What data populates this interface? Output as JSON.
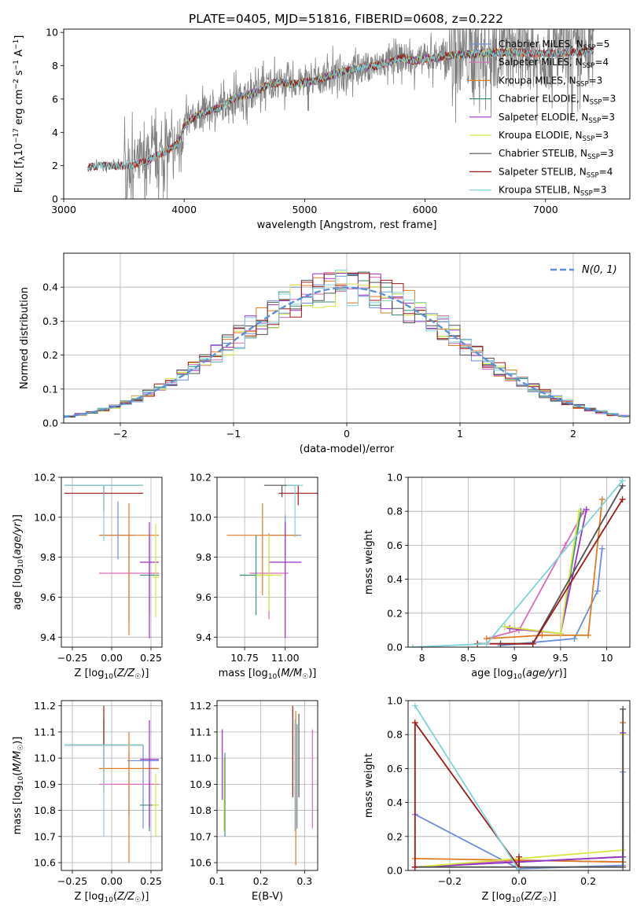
{
  "figure_title": "PLATE=0405, MJD=51816, FIBERID=0608, z=0.222",
  "palette": {
    "Chabrier MILES": "#6a8fd8",
    "Salpeter MILES": "#d96cb8",
    "Kroupa MILES": "#e07b20",
    "Chabrier ELODIE": "#3a8f7a",
    "Salpeter ELODIE": "#9b30c8",
    "Kroupa ELODIE": "#d8e640",
    "Chabrier STELIB": "#505050",
    "Salpeter STELIB": "#a01818",
    "Kroupa STELIB": "#7ed3d8",
    "data": "#808080",
    "gauss": "#5b8fd6"
  },
  "chart_data": [
    {
      "id": "spectrum",
      "type": "line",
      "xlabel": "wavelength [Angstrom, rest frame]",
      "ylabel": "Flux [f_λ10^-17 erg cm^-2 s^-1 A^-1]",
      "xlim": [
        3000,
        7700
      ],
      "ylim": [
        0,
        10.2
      ],
      "xticks": [
        3000,
        4000,
        5000,
        6000,
        7000
      ],
      "yticks": [
        0,
        2,
        4,
        6,
        8,
        10
      ],
      "grid": false,
      "legend_position": "top-right",
      "legend": [
        {
          "label": "Chabrier MILES",
          "nssp": "5",
          "color": "#6a8fd8"
        },
        {
          "label": "Salpeter MILES",
          "nssp": "4",
          "color": "#d96cb8"
        },
        {
          "label": "Kroupa MILES",
          "nssp": "3",
          "color": "#e07b20"
        },
        {
          "label": "Chabrier ELODIE",
          "nssp": "3",
          "color": "#3a8f7a"
        },
        {
          "label": "Salpeter ELODIE",
          "nssp": "3",
          "color": "#9b30c8"
        },
        {
          "label": "Kroupa ELODIE",
          "nssp": "3",
          "color": "#d8e640"
        },
        {
          "label": "Chabrier STELIB",
          "nssp": "3",
          "color": "#505050"
        },
        {
          "label": "Salpeter STELIB",
          "nssp": "4",
          "color": "#a01818"
        },
        {
          "label": "Kroupa STELIB",
          "nssp": "3",
          "color": "#7ed3d8"
        }
      ],
      "continuum": {
        "x": [
          3200,
          3300,
          3400,
          3500,
          3600,
          3700,
          3800,
          3900,
          3950,
          4000,
          4100,
          4200,
          4300,
          4400,
          4500,
          4600,
          4700,
          4800,
          4900,
          5000,
          5100,
          5200,
          5300,
          5400,
          5500,
          5600,
          5700,
          5800,
          5900,
          6000,
          6200,
          6400,
          6600,
          6800,
          7000,
          7200,
          7400
        ],
        "y": [
          1.9,
          2.0,
          2.0,
          2.0,
          2.1,
          2.3,
          2.7,
          3.1,
          3.3,
          4.4,
          5.0,
          5.3,
          5.5,
          6.0,
          6.2,
          6.4,
          6.9,
          7.0,
          6.9,
          7.0,
          7.1,
          7.4,
          7.6,
          7.8,
          7.9,
          8.0,
          8.2,
          8.5,
          8.3,
          8.4,
          8.6,
          8.7,
          8.8,
          8.8,
          8.7,
          8.8,
          8.9
        ]
      },
      "model_ranges": {
        "MILES": [
          3525,
          7400
        ],
        "ELODIE": [
          3900,
          6800
        ],
        "STELIB": [
          3200,
          7400
        ]
      },
      "noise_region": [
        3200,
        7400
      ],
      "noisy_region": [
        6200,
        7400
      ]
    },
    {
      "id": "residuals",
      "type": "area",
      "xlabel": "(data-model)/error",
      "ylabel": "Normed distribution",
      "xlim": [
        -2.5,
        2.5
      ],
      "ylim": [
        0,
        0.5
      ],
      "xticks": [
        -2,
        -1,
        0,
        1,
        2
      ],
      "xtick_labels": [
        "−2",
        "−1",
        "0",
        "1",
        "2"
      ],
      "yticks": [
        0,
        0.1,
        0.2,
        0.3,
        0.4
      ],
      "grid": true,
      "legend_position": "top-right",
      "legend": [
        {
          "label": "N(0, 1)",
          "color": "#5b8fd6",
          "style": "dashed"
        }
      ],
      "bin_width": 0.1
    },
    {
      "id": "age-vs-Z",
      "type": "scatter",
      "xlabel": "Z [log10(Z/Z☉)]",
      "ylabel": "age [log10(age/yr)]",
      "xlim": [
        -0.32,
        0.32
      ],
      "ylim": [
        9.35,
        10.2
      ],
      "xticks": [
        -0.25,
        0,
        0.25
      ],
      "xtick_labels": [
        "−0.25",
        "0.00",
        "0.25"
      ],
      "yticks": [
        9.4,
        9.6,
        9.8,
        10.0,
        10.2
      ],
      "grid": true,
      "points": [
        {
          "model": "Chabrier MILES",
          "x": 0.04,
          "y": 9.91,
          "xerr": [
            0.11,
            0.11
          ],
          "yerr": [
            0.12,
            0.17
          ]
        },
        {
          "model": "Salpeter MILES",
          "x": 0.11,
          "y": 9.72,
          "xerr": [
            0.19,
            0.19
          ],
          "yerr": [
            0.24,
            0.2
          ]
        },
        {
          "model": "Kroupa MILES",
          "x": 0.11,
          "y": 9.91,
          "xerr": [
            0.19,
            0.19
          ],
          "yerr": [
            0.5,
            0.16
          ]
        },
        {
          "model": "Chabrier ELODIE",
          "x": 0.24,
          "y": 9.71,
          "xerr": [
            0.06,
            0.06
          ],
          "yerr": [
            0.2,
            0.2
          ]
        },
        {
          "model": "Salpeter ELODIE",
          "x": 0.24,
          "y": 9.775,
          "xerr": [
            0.06,
            0.06
          ],
          "yerr": [
            0.38,
            0.2
          ]
        },
        {
          "model": "Kroupa ELODIE",
          "x": 0.28,
          "y": 9.7,
          "xerr": [
            0.02,
            0.02
          ],
          "yerr": [
            0.2,
            0.27
          ]
        },
        {
          "model": "Chabrier STELIB",
          "x": -0.05,
          "y": 10.16,
          "xerr": [
            0.25,
            0.25
          ],
          "yerr": [
            0.05,
            0.0
          ]
        },
        {
          "model": "Salpeter STELIB",
          "x": -0.05,
          "y": 10.12,
          "xerr": [
            0.25,
            0.25
          ],
          "yerr": [
            0.09,
            0.04
          ]
        },
        {
          "model": "Kroupa STELIB",
          "x": -0.05,
          "y": 10.16,
          "xerr": [
            0.25,
            0.25
          ],
          "yerr": [
            0.28,
            0.0
          ]
        }
      ]
    },
    {
      "id": "age-vs-mass",
      "type": "scatter",
      "xlabel": "mass [log10(M/M☉)]",
      "ylabel": "",
      "xlim": [
        10.58,
        11.2
      ],
      "ylim": [
        9.35,
        10.2
      ],
      "xticks": [
        10.75,
        11.0
      ],
      "xtick_labels": [
        "10.75",
        "11.00"
      ],
      "yticks": [
        9.4,
        9.6,
        9.8,
        10.0,
        10.2
      ],
      "grid": true,
      "points": [
        {
          "model": "Chabrier MILES",
          "x": 11.0,
          "y": 9.91,
          "xerr": [
            0.1,
            0.1
          ],
          "yerr": [
            0.1,
            0.1
          ]
        },
        {
          "model": "Salpeter MILES",
          "x": 10.9,
          "y": 9.72,
          "xerr": [
            0.12,
            0.12
          ],
          "yerr": [
            0.23,
            0.2
          ]
        },
        {
          "model": "Kroupa MILES",
          "x": 10.86,
          "y": 9.91,
          "xerr": [
            0.22,
            0.22
          ],
          "yerr": [
            0.3,
            0.16
          ]
        },
        {
          "model": "Chabrier ELODIE",
          "x": 10.82,
          "y": 9.71,
          "xerr": [
            0.1,
            0.1
          ],
          "yerr": [
            0.2,
            0.2
          ]
        },
        {
          "model": "Salpeter ELODIE",
          "x": 11.0,
          "y": 9.775,
          "xerr": [
            0.1,
            0.1
          ],
          "yerr": [
            0.38,
            0.2
          ]
        },
        {
          "model": "Kroupa ELODIE",
          "x": 10.9,
          "y": 9.71,
          "xerr": [
            0.08,
            0.08
          ],
          "yerr": [
            0.18,
            0.2
          ]
        },
        {
          "model": "Chabrier STELIB",
          "x": 10.98,
          "y": 10.16,
          "xerr": [
            0.11,
            0.11
          ],
          "yerr": [
            0.06,
            0.0
          ]
        },
        {
          "model": "Salpeter STELIB",
          "x": 11.08,
          "y": 10.12,
          "xerr": [
            0.12,
            0.12
          ],
          "yerr": [
            0.06,
            0.04
          ]
        },
        {
          "model": "Kroupa STELIB",
          "x": 11.06,
          "y": 10.16,
          "xerr": [
            0.05,
            0.05
          ],
          "yerr": [
            0.26,
            0.0
          ]
        }
      ]
    },
    {
      "id": "weight-vs-age",
      "type": "line",
      "xlabel": "age [log10(age/yr)]",
      "ylabel": "mass weight",
      "xlim": [
        7.85,
        10.25
      ],
      "ylim": [
        0,
        1
      ],
      "xticks": [
        8.0,
        8.5,
        9.0,
        9.5,
        10.0
      ],
      "yticks": [
        0,
        0.2,
        0.4,
        0.6,
        0.8,
        1.0
      ],
      "grid": true,
      "series": [
        {
          "model": "Chabrier MILES",
          "x": [
            8.85,
            9.65,
            9.9,
            9.95
          ],
          "y": [
            0.01,
            0.05,
            0.33,
            0.58
          ]
        },
        {
          "model": "Salpeter MILES",
          "x": [
            8.7,
            9.05,
            9.55,
            9.75
          ],
          "y": [
            0.05,
            0.1,
            0.6,
            0.8
          ]
        },
        {
          "model": "Kroupa MILES",
          "x": [
            8.7,
            9.3,
            9.8,
            9.95
          ],
          "y": [
            0.05,
            0.07,
            0.07,
            0.87
          ]
        },
        {
          "model": "Chabrier ELODIE",
          "x": [
            8.9,
            9.5,
            9.72
          ],
          "y": [
            0.12,
            0.08,
            0.8
          ]
        },
        {
          "model": "Salpeter ELODIE",
          "x": [
            8.95,
            9.5,
            9.78
          ],
          "y": [
            0.11,
            0.08,
            0.81
          ]
        },
        {
          "model": "Kroupa ELODIE",
          "x": [
            8.9,
            9.5,
            9.7
          ],
          "y": [
            0.12,
            0.08,
            0.8
          ]
        },
        {
          "model": "Chabrier STELIB",
          "x": [
            8.85,
            9.2,
            10.17
          ],
          "y": [
            0.02,
            0.02,
            0.95
          ]
        },
        {
          "model": "Salpeter STELIB",
          "x": [
            8.6,
            9.2,
            10.17
          ],
          "y": [
            0.02,
            0.02,
            0.87
          ]
        },
        {
          "model": "Kroupa STELIB",
          "x": [
            7.9,
            8.7,
            10.17
          ],
          "y": [
            0.0,
            0.02,
            0.98
          ]
        }
      ]
    },
    {
      "id": "mass-vs-Z",
      "type": "scatter",
      "xlabel": "Z [log10(Z/Z☉)]",
      "ylabel": "mass [log10(M/M☉)]",
      "xlim": [
        -0.32,
        0.32
      ],
      "ylim": [
        10.57,
        11.22
      ],
      "xticks": [
        -0.25,
        0,
        0.25
      ],
      "xtick_labels": [
        "−0.25",
        "0.00",
        "0.25"
      ],
      "yticks": [
        10.6,
        10.7,
        10.8,
        10.9,
        11.0,
        11.1,
        11.2
      ],
      "grid": true,
      "points": [
        {
          "model": "Chabrier MILES",
          "x": 0.2,
          "y": 10.99,
          "xerr": [
            0.1,
            0.1
          ],
          "yerr": [
            0.26,
            0.06
          ]
        },
        {
          "model": "Salpeter MILES",
          "x": 0.11,
          "y": 10.9,
          "xerr": [
            0.19,
            0.19
          ],
          "yerr": [
            0.12,
            0.12
          ]
        },
        {
          "model": "Kroupa MILES",
          "x": 0.11,
          "y": 10.96,
          "xerr": [
            0.19,
            0.19
          ],
          "yerr": [
            0.36,
            0.14
          ]
        },
        {
          "model": "Chabrier ELODIE",
          "x": 0.24,
          "y": 10.82,
          "xerr": [
            0.06,
            0.06
          ],
          "yerr": [
            0.1,
            0.1
          ]
        },
        {
          "model": "Salpeter ELODIE",
          "x": 0.24,
          "y": 10.995,
          "xerr": [
            0.06,
            0.06
          ],
          "yerr": [
            0.26,
            0.15
          ]
        },
        {
          "model": "Kroupa ELODIE",
          "x": 0.28,
          "y": 10.82,
          "xerr": [
            0.02,
            0.02
          ],
          "yerr": [
            0.12,
            0.12
          ]
        },
        {
          "model": "Chabrier STELIB",
          "x": -0.05,
          "y": 11.05,
          "xerr": [
            0.25,
            0.25
          ],
          "yerr": [
            0.1,
            0.1
          ]
        },
        {
          "model": "Salpeter STELIB",
          "x": -0.05,
          "y": 11.05,
          "xerr": [
            0.25,
            0.25
          ],
          "yerr": [
            0.18,
            0.15
          ]
        },
        {
          "model": "Kroupa STELIB",
          "x": -0.05,
          "y": 11.05,
          "xerr": [
            0.25,
            0.25
          ],
          "yerr": [
            0.35,
            0.0
          ]
        }
      ]
    },
    {
      "id": "mass-vs-ebv",
      "type": "scatter",
      "xlabel": "E(B-V)",
      "ylabel": "",
      "xlim": [
        0.1,
        0.33
      ],
      "ylim": [
        10.57,
        11.22
      ],
      "xticks": [
        0.1,
        0.2,
        0.3
      ],
      "xtick_labels": [
        "0.1",
        "0.2",
        "0.3"
      ],
      "yticks": [
        10.6,
        10.7,
        10.8,
        10.9,
        11.0,
        11.1,
        11.2
      ],
      "grid": true,
      "points": [
        {
          "model": "Chabrier MILES",
          "x": 0.283,
          "y": 10.93,
          "yerr": [
            0.2,
            0.2
          ]
        },
        {
          "model": "Salpeter MILES",
          "x": 0.318,
          "y": 10.92,
          "yerr": [
            0.19,
            0.19
          ]
        },
        {
          "model": "Kroupa MILES",
          "x": 0.28,
          "y": 10.9,
          "yerr": [
            0.31,
            0.28
          ]
        },
        {
          "model": "Chabrier ELODIE",
          "x": 0.118,
          "y": 10.86,
          "yerr": [
            0.16,
            0.16
          ]
        },
        {
          "model": "Salpeter ELODIE",
          "x": 0.112,
          "y": 10.99,
          "yerr": [
            0.15,
            0.12
          ]
        },
        {
          "model": "Kroupa ELODIE",
          "x": 0.116,
          "y": 10.86,
          "yerr": [
            0.14,
            0.14
          ]
        },
        {
          "model": "Chabrier STELIB",
          "x": 0.287,
          "y": 11.05,
          "yerr": [
            0.2,
            0.12
          ]
        },
        {
          "model": "Salpeter STELIB",
          "x": 0.273,
          "y": 11.05,
          "yerr": [
            0.2,
            0.15
          ]
        },
        {
          "model": "Kroupa STELIB",
          "x": 0.278,
          "y": 11.05,
          "yerr": [
            0.33,
            0.1
          ]
        }
      ]
    },
    {
      "id": "weight-vs-Z",
      "type": "line",
      "xlabel": "Z [log10(Z/Z☉)]",
      "ylabel": "mass weight",
      "xlim": [
        -0.32,
        0.32
      ],
      "ylim": [
        0,
        1
      ],
      "xticks": [
        -0.2,
        0,
        0.2
      ],
      "xtick_labels": [
        "−0.2",
        "0.0",
        "0.2"
      ],
      "yticks": [
        0,
        0.2,
        0.4,
        0.6,
        0.8,
        1.0
      ],
      "grid": true,
      "series": [
        {
          "model": "Chabrier MILES",
          "x": [
            -0.3,
            0.0,
            0.3,
            0.3
          ],
          "y": [
            0.33,
            0.01,
            0.03,
            0.58
          ]
        },
        {
          "model": "Salpeter MILES",
          "x": [
            -0.3,
            0.0,
            0.3,
            0.3
          ],
          "y": [
            0.02,
            0.06,
            0.05,
            0.8
          ]
        },
        {
          "model": "Kroupa MILES",
          "x": [
            -0.3,
            0.0,
            0.3,
            0.3
          ],
          "y": [
            0.07,
            0.06,
            0.05,
            0.87
          ]
        },
        {
          "model": "Chabrier ELODIE",
          "x": [
            -0.3,
            0.3,
            0.3
          ],
          "y": [
            0.02,
            0.08,
            0.8
          ]
        },
        {
          "model": "Salpeter ELODIE",
          "x": [
            -0.3,
            0.3,
            0.3
          ],
          "y": [
            0.02,
            0.08,
            0.81
          ]
        },
        {
          "model": "Kroupa ELODIE",
          "x": [
            -0.3,
            0.3,
            0.3
          ],
          "y": [
            0.02,
            0.12,
            0.8
          ]
        },
        {
          "model": "Chabrier STELIB",
          "x": [
            -0.3,
            0.0,
            0.3,
            0.3
          ],
          "y": [
            0.02,
            0.02,
            0.02,
            0.95
          ]
        },
        {
          "model": "Salpeter STELIB",
          "x": [
            -0.3,
            -0.3,
            0.0,
            0.0
          ],
          "y": [
            0.02,
            0.87,
            0.02,
            0.08
          ]
        },
        {
          "model": "Kroupa STELIB",
          "x": [
            -0.3,
            0.0
          ],
          "y": [
            0.97,
            0.0
          ]
        }
      ]
    }
  ]
}
